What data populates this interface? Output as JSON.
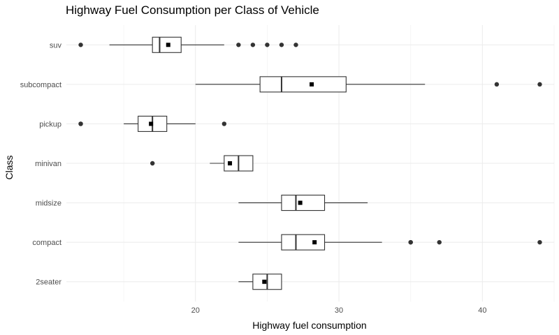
{
  "chart_data": {
    "type": "boxplot",
    "orientation": "horizontal",
    "title": "Highway Fuel Consumption per Class of Vehicle",
    "xlabel": "Highway fuel consumption",
    "ylabel": "Class",
    "xlim": [
      11,
      45
    ],
    "xticks": [
      20,
      30,
      40
    ],
    "grid": true,
    "categories": [
      "2seater",
      "compact",
      "midsize",
      "minivan",
      "pickup",
      "subcompact",
      "suv"
    ],
    "boxes": [
      {
        "category": "2seater",
        "whisker_low": 23,
        "q1": 24,
        "median": 25,
        "q3": 26,
        "whisker_high": 26,
        "mean": 24.8,
        "outliers": []
      },
      {
        "category": "compact",
        "whisker_low": 23,
        "q1": 26,
        "median": 27,
        "q3": 29,
        "whisker_high": 33,
        "mean": 28.3,
        "outliers": [
          35,
          35,
          37,
          44
        ]
      },
      {
        "category": "midsize",
        "whisker_low": 23,
        "q1": 26,
        "median": 27,
        "q3": 29,
        "whisker_high": 32,
        "mean": 27.3,
        "outliers": []
      },
      {
        "category": "minivan",
        "whisker_low": 21,
        "q1": 22,
        "median": 23,
        "q3": 24,
        "whisker_high": 24,
        "mean": 22.4,
        "outliers": [
          17
        ]
      },
      {
        "category": "pickup",
        "whisker_low": 15,
        "q1": 16,
        "median": 17,
        "q3": 18,
        "whisker_high": 20,
        "mean": 16.9,
        "outliers": [
          12,
          12,
          22
        ]
      },
      {
        "category": "subcompact",
        "whisker_low": 20,
        "q1": 24.5,
        "median": 26,
        "q3": 30.5,
        "whisker_high": 36,
        "mean": 28.1,
        "outliers": [
          41,
          44
        ]
      },
      {
        "category": "suv",
        "whisker_low": 14,
        "q1": 17,
        "median": 17.5,
        "q3": 19,
        "whisker_high": 22,
        "mean": 18.1,
        "outliers": [
          12,
          23,
          24,
          25,
          26,
          27
        ]
      }
    ]
  }
}
